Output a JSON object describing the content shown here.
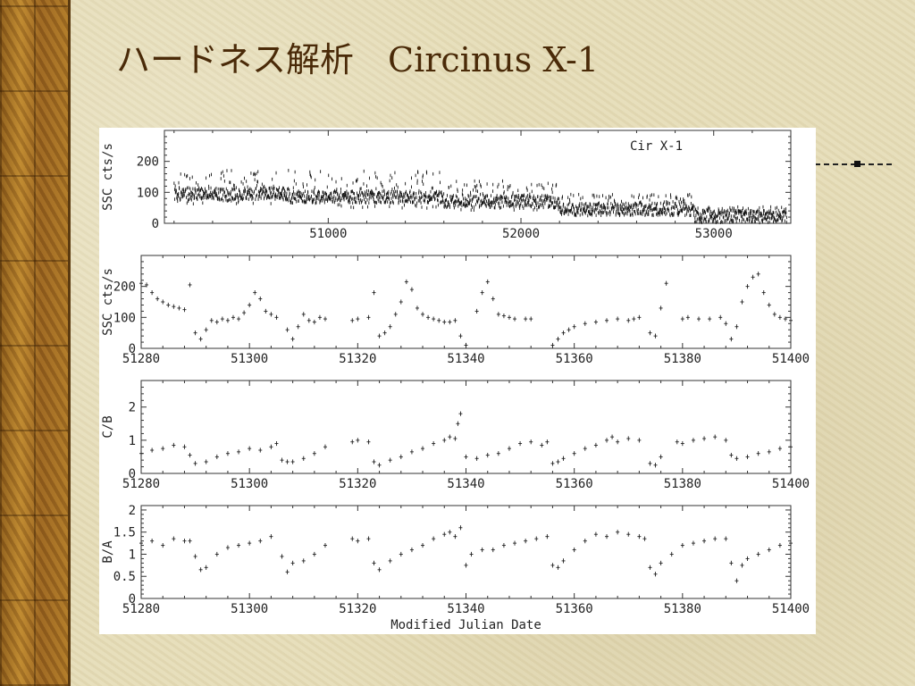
{
  "slide": {
    "title": "ハードネス解析　Circinus X-1"
  },
  "chart_data": [
    {
      "type": "scatter",
      "annotation": "Cir X-1",
      "ylabel": "SSC cts/s",
      "xlim": [
        50150,
        53400
      ],
      "ylim": [
        0,
        300
      ],
      "xticks": [
        51000,
        52000,
        53000
      ],
      "yticks": [
        0,
        100,
        200
      ],
      "series": [
        {
          "segments": [
            {
              "x0": 50200,
              "x1": 50800,
              "base": 95,
              "amp": 110
            },
            {
              "x0": 50800,
              "x1": 51600,
              "base": 85,
              "amp": 120
            },
            {
              "x0": 51600,
              "x1": 52200,
              "base": 70,
              "amp": 95
            },
            {
              "x0": 52200,
              "x1": 52900,
              "base": 45,
              "amp": 70
            },
            {
              "x0": 52900,
              "x1": 53380,
              "base": 22,
              "amp": 45
            }
          ]
        }
      ]
    },
    {
      "type": "scatter",
      "ylabel": "SSC cts/s",
      "xlim": [
        51280,
        51400
      ],
      "ylim": [
        0,
        300
      ],
      "xticks": [
        51280,
        51300,
        51320,
        51340,
        51360,
        51380,
        51400
      ],
      "yticks": [
        0,
        100,
        200
      ],
      "series": [
        {
          "points": [
            [
              51280,
              210
            ],
            [
              51281,
              205
            ],
            [
              51282,
              180
            ],
            [
              51283,
              160
            ],
            [
              51284,
              150
            ],
            [
              51285,
              140
            ],
            [
              51286,
              135
            ],
            [
              51287,
              130
            ],
            [
              51288,
              125
            ],
            [
              51289,
              205
            ],
            [
              51290,
              50
            ],
            [
              51291,
              30
            ],
            [
              51292,
              60
            ],
            [
              51293,
              90
            ],
            [
              51294,
              85
            ],
            [
              51295,
              95
            ],
            [
              51296,
              90
            ],
            [
              51297,
              100
            ],
            [
              51298,
              95
            ],
            [
              51299,
              115
            ],
            [
              51300,
              140
            ],
            [
              51301,
              180
            ],
            [
              51302,
              160
            ],
            [
              51303,
              120
            ],
            [
              51304,
              110
            ],
            [
              51305,
              100
            ],
            [
              51307,
              60
            ],
            [
              51308,
              30
            ],
            [
              51309,
              70
            ],
            [
              51310,
              110
            ],
            [
              51311,
              90
            ],
            [
              51312,
              85
            ],
            [
              51313,
              100
            ],
            [
              51314,
              95
            ],
            [
              51319,
              90
            ],
            [
              51320,
              95
            ],
            [
              51322,
              100
            ],
            [
              51323,
              180
            ],
            [
              51324,
              40
            ],
            [
              51325,
              50
            ],
            [
              51326,
              70
            ],
            [
              51327,
              110
            ],
            [
              51328,
              150
            ],
            [
              51329,
              215
            ],
            [
              51330,
              190
            ],
            [
              51331,
              130
            ],
            [
              51332,
              110
            ],
            [
              51333,
              100
            ],
            [
              51334,
              95
            ],
            [
              51335,
              90
            ],
            [
              51336,
              85
            ],
            [
              51337,
              85
            ],
            [
              51338,
              90
            ],
            [
              51339,
              40
            ],
            [
              51340,
              10
            ],
            [
              51342,
              120
            ],
            [
              51343,
              180
            ],
            [
              51344,
              215
            ],
            [
              51345,
              160
            ],
            [
              51346,
              110
            ],
            [
              51347,
              105
            ],
            [
              51348,
              100
            ],
            [
              51349,
              95
            ],
            [
              51351,
              95
            ],
            [
              51352,
              95
            ],
            [
              51356,
              10
            ],
            [
              51357,
              30
            ],
            [
              51358,
              50
            ],
            [
              51359,
              60
            ],
            [
              51360,
              70
            ],
            [
              51362,
              80
            ],
            [
              51364,
              85
            ],
            [
              51366,
              90
            ],
            [
              51368,
              95
            ],
            [
              51370,
              90
            ],
            [
              51371,
              95
            ],
            [
              51372,
              100
            ],
            [
              51374,
              50
            ],
            [
              51375,
              40
            ],
            [
              51376,
              130
            ],
            [
              51377,
              210
            ],
            [
              51380,
              95
            ],
            [
              51381,
              100
            ],
            [
              51383,
              95
            ],
            [
              51385,
              95
            ],
            [
              51387,
              100
            ],
            [
              51388,
              80
            ],
            [
              51389,
              30
            ],
            [
              51390,
              70
            ],
            [
              51391,
              150
            ],
            [
              51392,
              200
            ],
            [
              51393,
              230
            ],
            [
              51394,
              240
            ],
            [
              51395,
              180
            ],
            [
              51396,
              140
            ],
            [
              51397,
              110
            ],
            [
              51398,
              100
            ],
            [
              51399,
              95
            ],
            [
              51400,
              90
            ]
          ]
        }
      ]
    },
    {
      "type": "scatter",
      "ylabel": "C/B",
      "xlim": [
        51280,
        51400
      ],
      "ylim": [
        0,
        2.8
      ],
      "xticks": [
        51280,
        51300,
        51320,
        51340,
        51360,
        51380,
        51400
      ],
      "yticks": [
        0,
        1,
        2
      ],
      "series": [
        {
          "points": [
            [
              51280,
              0.6
            ],
            [
              51282,
              0.7
            ],
            [
              51284,
              0.75
            ],
            [
              51286,
              0.85
            ],
            [
              51288,
              0.8
            ],
            [
              51289,
              0.55
            ],
            [
              51290,
              0.3
            ],
            [
              51292,
              0.35
            ],
            [
              51294,
              0.5
            ],
            [
              51296,
              0.6
            ],
            [
              51298,
              0.65
            ],
            [
              51300,
              0.75
            ],
            [
              51302,
              0.7
            ],
            [
              51304,
              0.8
            ],
            [
              51305,
              0.9
            ],
            [
              51306,
              0.4
            ],
            [
              51307,
              0.35
            ],
            [
              51308,
              0.35
            ],
            [
              51310,
              0.45
            ],
            [
              51312,
              0.6
            ],
            [
              51314,
              0.8
            ],
            [
              51319,
              0.95
            ],
            [
              51320,
              1.0
            ],
            [
              51322,
              0.95
            ],
            [
              51323,
              0.35
            ],
            [
              51324,
              0.25
            ],
            [
              51326,
              0.4
            ],
            [
              51328,
              0.5
            ],
            [
              51330,
              0.65
            ],
            [
              51332,
              0.75
            ],
            [
              51334,
              0.9
            ],
            [
              51336,
              1.0
            ],
            [
              51337,
              1.1
            ],
            [
              51338,
              1.05
            ],
            [
              51338.5,
              1.5
            ],
            [
              51339,
              1.8
            ],
            [
              51340,
              0.5
            ],
            [
              51342,
              0.45
            ],
            [
              51344,
              0.55
            ],
            [
              51346,
              0.6
            ],
            [
              51348,
              0.75
            ],
            [
              51350,
              0.9
            ],
            [
              51352,
              0.95
            ],
            [
              51354,
              0.85
            ],
            [
              51355,
              0.95
            ],
            [
              51356,
              0.3
            ],
            [
              51357,
              0.35
            ],
            [
              51358,
              0.45
            ],
            [
              51360,
              0.6
            ],
            [
              51362,
              0.75
            ],
            [
              51364,
              0.85
            ],
            [
              51366,
              1.0
            ],
            [
              51367,
              1.1
            ],
            [
              51368,
              0.95
            ],
            [
              51370,
              1.05
            ],
            [
              51372,
              1.0
            ],
            [
              51374,
              0.3
            ],
            [
              51375,
              0.25
            ],
            [
              51376,
              0.5
            ],
            [
              51379,
              0.95
            ],
            [
              51380,
              0.9
            ],
            [
              51382,
              1.0
            ],
            [
              51384,
              1.05
            ],
            [
              51386,
              1.1
            ],
            [
              51388,
              1.0
            ],
            [
              51389,
              0.55
            ],
            [
              51390,
              0.45
            ],
            [
              51392,
              0.5
            ],
            [
              51394,
              0.6
            ],
            [
              51396,
              0.65
            ],
            [
              51398,
              0.75
            ],
            [
              51400,
              0.8
            ]
          ]
        }
      ]
    },
    {
      "type": "scatter",
      "ylabel": "B/A",
      "xlim": [
        51280,
        51400
      ],
      "ylim": [
        0,
        2.1
      ],
      "xticks": [
        51280,
        51300,
        51320,
        51340,
        51360,
        51380,
        51400
      ],
      "yticks": [
        0,
        0.5,
        1,
        1.5,
        2
      ],
      "ytick_labels": [
        "0",
        "0.5",
        "1",
        "1.5",
        "2"
      ],
      "xlabel": "Modified Julian Date",
      "series": [
        {
          "points": [
            [
              51280,
              1.25
            ],
            [
              51282,
              1.3
            ],
            [
              51284,
              1.2
            ],
            [
              51286,
              1.35
            ],
            [
              51288,
              1.3
            ],
            [
              51289,
              1.3
            ],
            [
              51290,
              0.95
            ],
            [
              51291,
              0.65
            ],
            [
              51292,
              0.7
            ],
            [
              51294,
              1.0
            ],
            [
              51296,
              1.15
            ],
            [
              51298,
              1.2
            ],
            [
              51300,
              1.25
            ],
            [
              51302,
              1.3
            ],
            [
              51304,
              1.4
            ],
            [
              51306,
              0.95
            ],
            [
              51307,
              0.6
            ],
            [
              51308,
              0.8
            ],
            [
              51310,
              0.85
            ],
            [
              51312,
              1.0
            ],
            [
              51314,
              1.2
            ],
            [
              51319,
              1.35
            ],
            [
              51320,
              1.3
            ],
            [
              51322,
              1.35
            ],
            [
              51323,
              0.8
            ],
            [
              51324,
              0.65
            ],
            [
              51326,
              0.85
            ],
            [
              51328,
              1.0
            ],
            [
              51330,
              1.1
            ],
            [
              51332,
              1.2
            ],
            [
              51334,
              1.35
            ],
            [
              51336,
              1.45
            ],
            [
              51337,
              1.5
            ],
            [
              51338,
              1.4
            ],
            [
              51339,
              1.6
            ],
            [
              51340,
              0.75
            ],
            [
              51341,
              1.0
            ],
            [
              51343,
              1.1
            ],
            [
              51345,
              1.1
            ],
            [
              51347,
              1.2
            ],
            [
              51349,
              1.25
            ],
            [
              51351,
              1.3
            ],
            [
              51353,
              1.35
            ],
            [
              51355,
              1.4
            ],
            [
              51356,
              0.75
            ],
            [
              51357,
              0.7
            ],
            [
              51358,
              0.85
            ],
            [
              51360,
              1.1
            ],
            [
              51362,
              1.3
            ],
            [
              51364,
              1.45
            ],
            [
              51366,
              1.4
            ],
            [
              51368,
              1.5
            ],
            [
              51370,
              1.45
            ],
            [
              51372,
              1.4
            ],
            [
              51373,
              1.35
            ],
            [
              51374,
              0.7
            ],
            [
              51375,
              0.55
            ],
            [
              51376,
              0.8
            ],
            [
              51378,
              1.0
            ],
            [
              51380,
              1.2
            ],
            [
              51382,
              1.25
            ],
            [
              51384,
              1.3
            ],
            [
              51386,
              1.35
            ],
            [
              51388,
              1.35
            ],
            [
              51389,
              0.8
            ],
            [
              51390,
              0.4
            ],
            [
              51391,
              0.75
            ],
            [
              51392,
              0.9
            ],
            [
              51394,
              1.0
            ],
            [
              51396,
              1.1
            ],
            [
              51398,
              1.2
            ],
            [
              51400,
              1.25
            ]
          ]
        }
      ]
    }
  ]
}
